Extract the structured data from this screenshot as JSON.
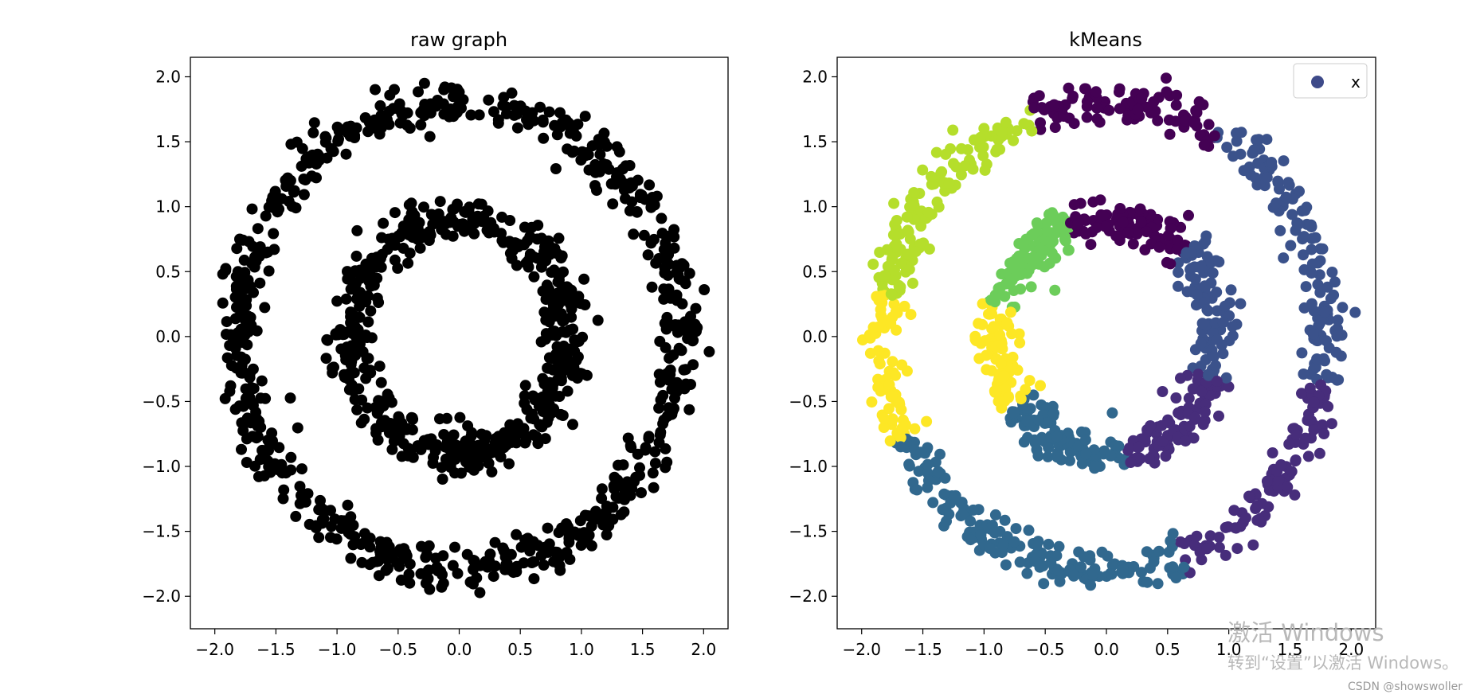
{
  "chart_data": [
    {
      "type": "scatter",
      "title": "raw graph",
      "xlim": [
        -2.2,
        2.2
      ],
      "ylim": [
        -2.25,
        2.15
      ],
      "xticks": [
        -2.0,
        -1.5,
        -1.0,
        -0.5,
        0.0,
        0.5,
        1.0,
        1.5,
        2.0
      ],
      "yticks": [
        -2.0,
        -1.5,
        -1.0,
        -0.5,
        0.0,
        0.5,
        1.0,
        1.5,
        2.0
      ],
      "xtick_labels": [
        "−2.0",
        "−1.5",
        "−1.0",
        "−0.5",
        "0.0",
        "0.5",
        "1.0",
        "1.5",
        "2.0"
      ],
      "ytick_labels": [
        "−2.0",
        "−1.5",
        "−1.0",
        "−0.5",
        "0.0",
        "0.5",
        "1.0",
        "1.5",
        "2.0"
      ],
      "point_color": "#000000",
      "series": [
        {
          "ring": "outer",
          "radius_approx": 1.8,
          "x": [
            1.8,
            1.66,
            1.27,
            0.69,
            0.0,
            -0.69,
            -1.27,
            -1.66,
            -1.8,
            -1.66,
            -1.27,
            -0.69,
            0.0,
            0.69,
            1.27,
            1.66
          ],
          "y": [
            0.0,
            0.69,
            1.27,
            1.66,
            1.8,
            1.66,
            1.27,
            0.69,
            0.0,
            -0.69,
            -1.27,
            -1.66,
            -1.8,
            -1.66,
            -1.27,
            -0.69
          ]
        },
        {
          "ring": "inner",
          "radius_approx": 0.9,
          "x": [
            0.9,
            0.78,
            0.45,
            0.0,
            -0.45,
            -0.78,
            -0.9,
            -0.78,
            -0.45,
            0.0,
            0.45,
            0.78
          ],
          "y": [
            0.0,
            0.45,
            0.78,
            0.9,
            0.78,
            0.45,
            0.0,
            -0.45,
            -0.78,
            -0.9,
            -0.78,
            -0.45
          ]
        }
      ]
    },
    {
      "type": "scatter",
      "title": "kMeans",
      "xlim": [
        -2.2,
        2.2
      ],
      "ylim": [
        -2.25,
        2.15
      ],
      "xticks": [
        -2.0,
        -1.5,
        -1.0,
        -0.5,
        0.0,
        0.5,
        1.0,
        1.5,
        2.0
      ],
      "yticks": [
        -2.0,
        -1.5,
        -1.0,
        -0.5,
        0.0,
        0.5,
        1.0,
        1.5,
        2.0
      ],
      "xtick_labels": [
        "−2.0",
        "−1.5",
        "−1.0",
        "−0.5",
        "0.0",
        "0.5",
        "1.0",
        "1.5",
        "2.0"
      ],
      "ytick_labels": [
        "−2.0",
        "−1.5",
        "−1.0",
        "−0.5",
        "0.0",
        "0.5",
        "1.0",
        "1.5",
        "2.0"
      ],
      "legend": {
        "label": "x",
        "marker_color": "#3e4a89",
        "placement": "top-right"
      },
      "clusters": [
        {
          "ring": "outer",
          "angle_range_deg": [
            60,
            109
          ],
          "color": "#440154"
        },
        {
          "ring": "outer",
          "angle_range_deg": [
            -12,
            60
          ],
          "color": "#3b528b"
        },
        {
          "ring": "outer",
          "angle_range_deg": [
            -70,
            -12
          ],
          "color": "#472d7b"
        },
        {
          "ring": "outer",
          "angle_range_deg": [
            -155,
            -70
          ],
          "color": "#31688e"
        },
        {
          "ring": "outer",
          "angle_range_deg": [
            -190,
            -155
          ],
          "color": "#fde725"
        },
        {
          "ring": "outer",
          "angle_range_deg": [
            109,
            170
          ],
          "color": "#b5de2b"
        },
        {
          "ring": "inner",
          "angle_range_deg": [
            45,
            110
          ],
          "color": "#440154"
        },
        {
          "ring": "inner",
          "angle_range_deg": [
            -20,
            45
          ],
          "color": "#3b528b"
        },
        {
          "ring": "inner",
          "angle_range_deg": [
            -80,
            -20
          ],
          "color": "#472d7b"
        },
        {
          "ring": "inner",
          "angle_range_deg": [
            -145,
            -80
          ],
          "color": "#31688e"
        },
        {
          "ring": "inner",
          "angle_range_deg": [
            -195,
            -145
          ],
          "color": "#fde725"
        },
        {
          "ring": "inner",
          "angle_range_deg": [
            110,
            165
          ],
          "color": "#6ccd5a"
        }
      ]
    }
  ],
  "watermark": {
    "line1": "激活 Windows",
    "line2": "转到“设置”以激活 Windows。",
    "credit": "CSDN @showswoller"
  }
}
